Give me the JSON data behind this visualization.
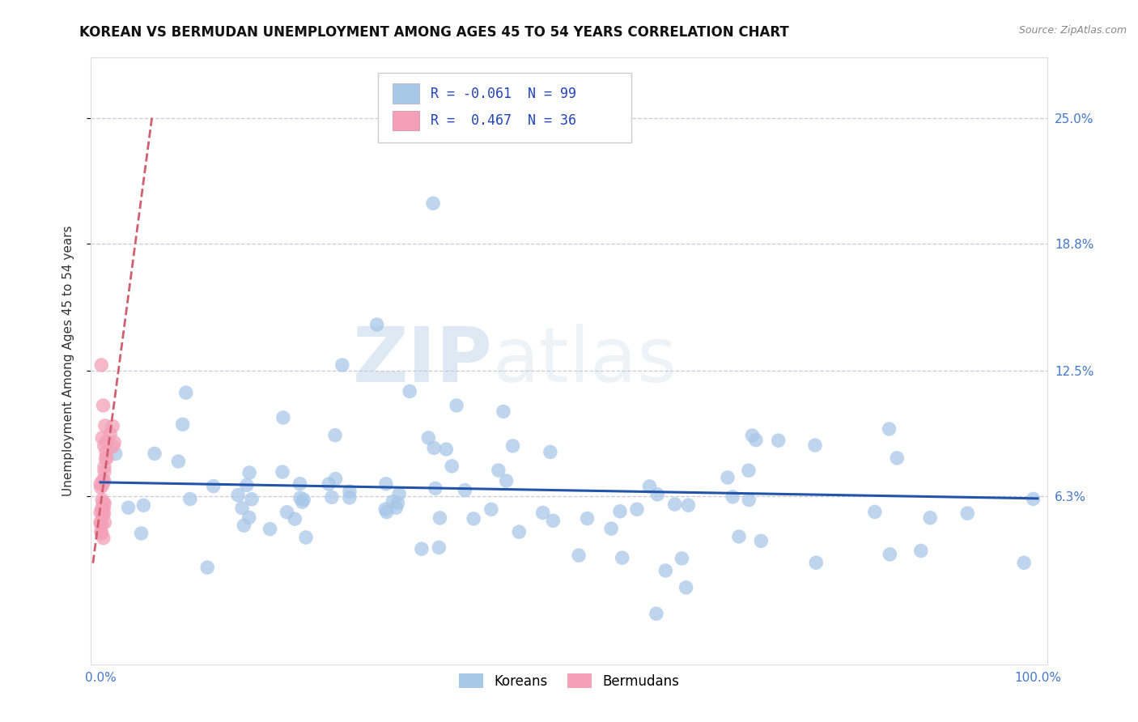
{
  "title": "KOREAN VS BERMUDAN UNEMPLOYMENT AMONG AGES 45 TO 54 YEARS CORRELATION CHART",
  "source": "Source: ZipAtlas.com",
  "ylabel": "Unemployment Among Ages 45 to 54 years",
  "xlim": [
    -0.01,
    1.01
  ],
  "ylim": [
    -0.02,
    0.28
  ],
  "ytick_vals": [
    0.063,
    0.125,
    0.188,
    0.25
  ],
  "ytick_labels": [
    "6.3%",
    "12.5%",
    "18.8%",
    "25.0%"
  ],
  "xtick_vals": [
    0.0,
    1.0
  ],
  "xtick_labels": [
    "0.0%",
    "100.0%"
  ],
  "korean_color": "#a8c8e8",
  "bermudan_color": "#f4a0b8",
  "korean_line_color": "#2255aa",
  "bermudan_line_color": "#d06070",
  "watermark_zip": "ZIP",
  "watermark_atlas": "atlas",
  "background_color": "#ffffff",
  "grid_color": "#c8c8d8",
  "title_fontsize": 12,
  "axis_label_fontsize": 11,
  "tick_fontsize": 11,
  "legend_r1": "R = -0.061  N = 99",
  "legend_r2": "R =  0.467  N = 36",
  "legend_label1": "Koreans",
  "legend_label2": "Bermudans"
}
